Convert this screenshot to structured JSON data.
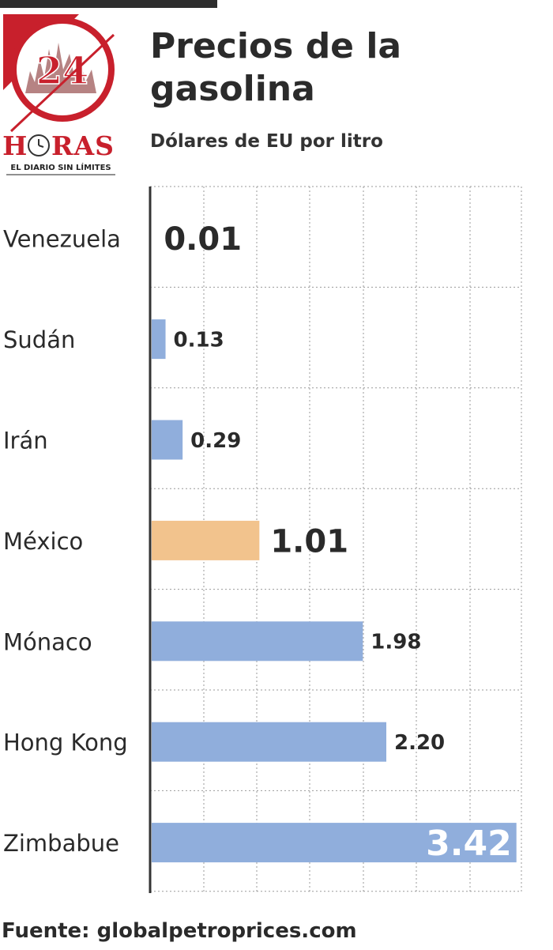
{
  "logo": {
    "number": "24",
    "name": "HORAS",
    "tagline": "EL DIARIO SIN LÍMITES"
  },
  "header": {
    "title_line1": "Precios de la",
    "title_line2": "gasolina",
    "subtitle": "Dólares de EU por litro"
  },
  "footer": {
    "source": "Fuente: globalpetroprices.com"
  },
  "colors": {
    "bar": "#90aedc",
    "highlight": "#f2c38d",
    "axis": "#333333",
    "grid": "#9a9a9a",
    "brand_red": "#c8202c"
  },
  "chart_data": {
    "type": "bar",
    "orientation": "horizontal",
    "title": "Precios de la gasolina",
    "subtitle": "Dólares de EU por litro",
    "categories": [
      "Venezuela",
      "Sudán",
      "Irán",
      "México",
      "Mónaco",
      "Hong Kong",
      "Zimbabue"
    ],
    "values": [
      0.01,
      0.13,
      0.29,
      1.01,
      1.98,
      2.2,
      3.42
    ],
    "value_labels": [
      "0.01",
      "0.13",
      "0.29",
      "1.01",
      "1.98",
      "2.20",
      "3.42"
    ],
    "highlight": "México",
    "xlim": [
      0,
      3.5
    ],
    "grid": true,
    "grid_style": "dotted"
  }
}
